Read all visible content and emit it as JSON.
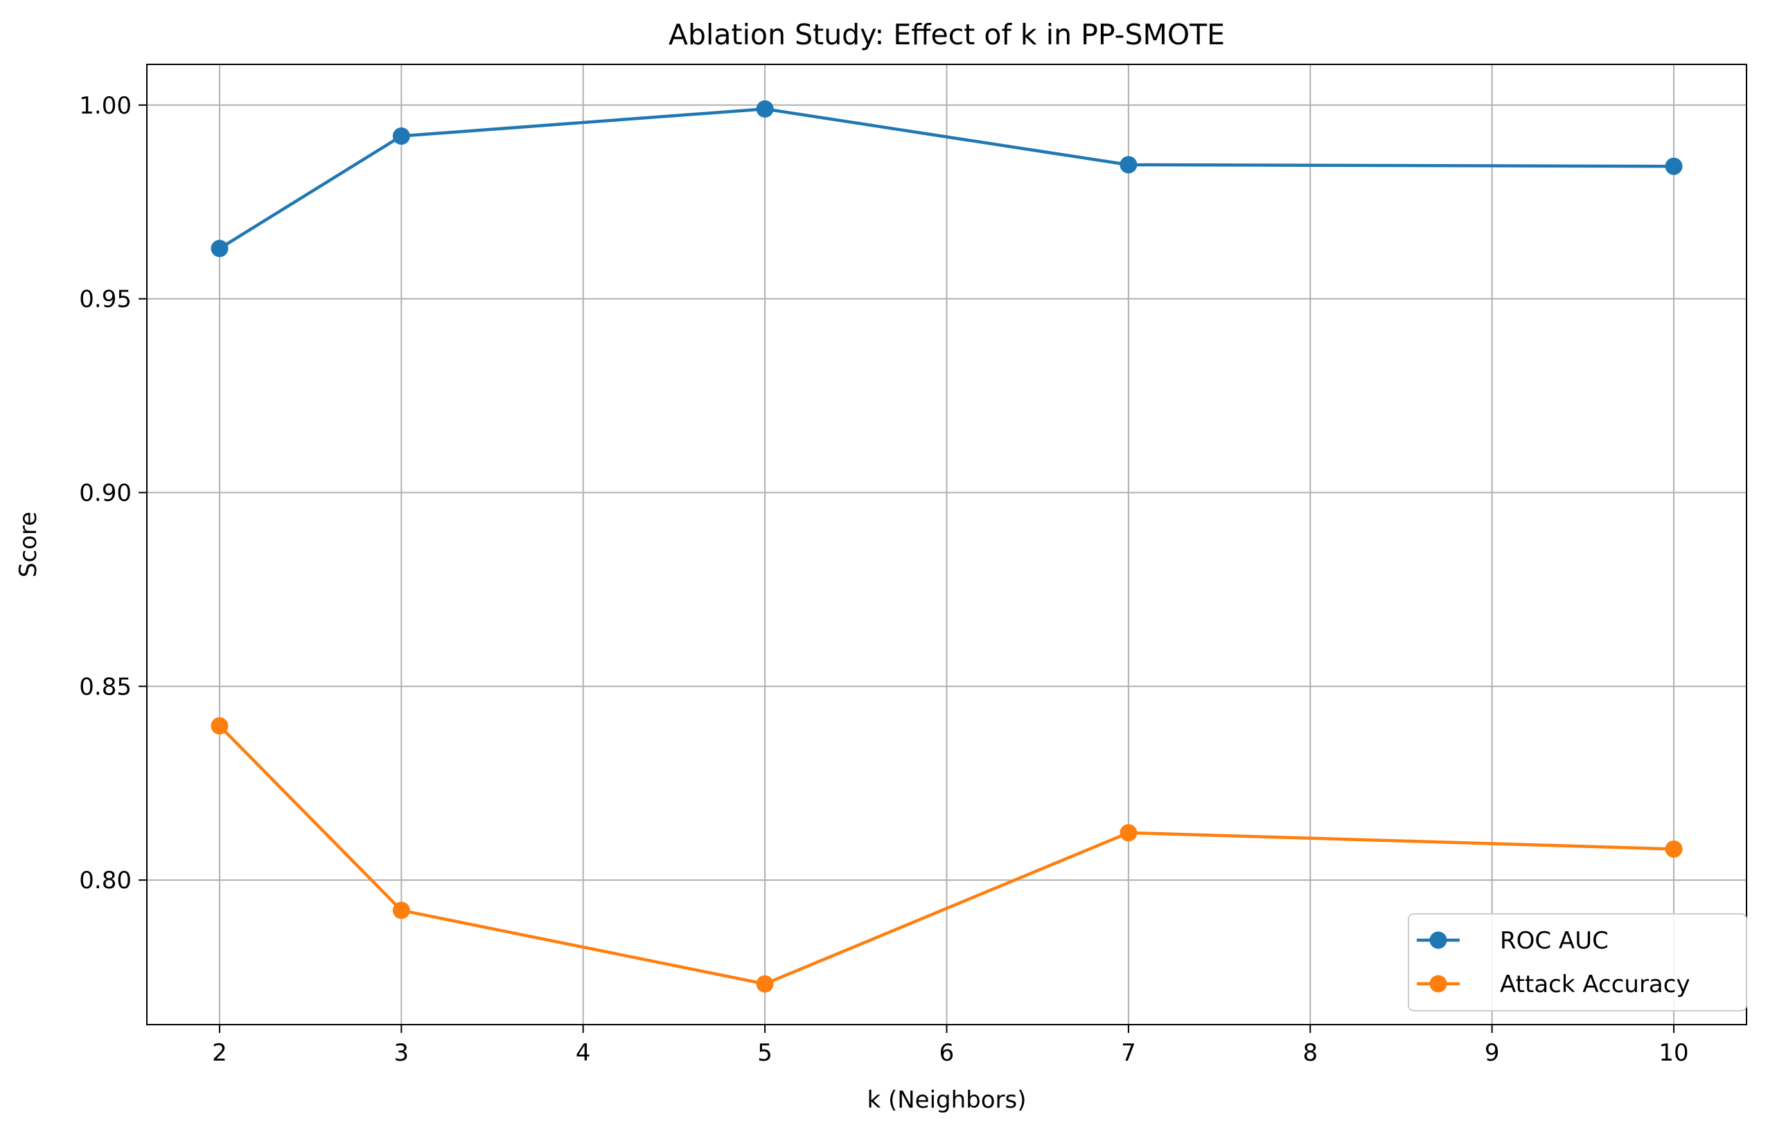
{
  "chart_data": {
    "type": "line",
    "title": "Ablation Study: Effect of k in PP-SMOTE",
    "xlabel": "k (Neighbors)",
    "ylabel": "Score",
    "x": [
      2,
      3,
      5,
      7,
      10
    ],
    "xlim": [
      1.6,
      10.4
    ],
    "ylim": [
      0.7627,
      1.0105
    ],
    "xticks": [
      2,
      3,
      4,
      5,
      6,
      7,
      8,
      9,
      10
    ],
    "yticks": [
      0.8,
      0.85,
      0.9,
      0.95,
      1.0
    ],
    "ytick_labels": [
      "0.80",
      "0.85",
      "0.90",
      "0.95",
      "1.00"
    ],
    "grid": true,
    "legend_position": "lower-right",
    "series": [
      {
        "name": "ROC AUC",
        "color": "#1f77b4",
        "marker": "circle",
        "values": [
          0.963,
          0.992,
          0.999,
          0.9846,
          0.9842
        ]
      },
      {
        "name": "Attack Accuracy",
        "color": "#ff7f0e",
        "marker": "circle",
        "values": [
          0.8398,
          0.7922,
          0.7732,
          0.8122,
          0.808
        ]
      }
    ]
  }
}
